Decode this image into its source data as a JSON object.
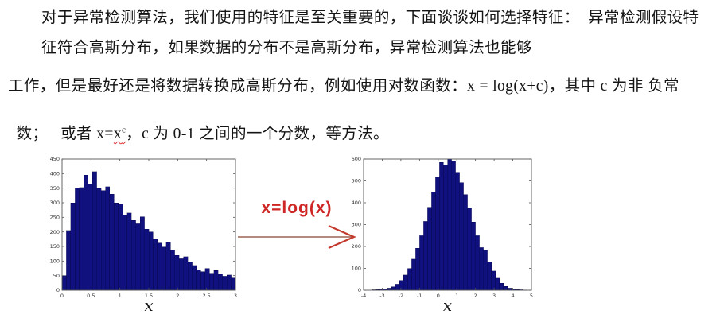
{
  "paragraph": {
    "line1": "对于异常检测算法，我们使用的特征是至关重要的，下面谈谈如何选择特征：  异常检测假设特",
    "line2": "征符合高斯分布，如果数据的分布不是高斯分布，异常检测算法也能够",
    "line3": "工作，但是最好还是将数据转换成高斯分布，例如使用对数函数：x = log(x+c)，其中 c 为非 负常",
    "line4_prefix": "数；   或者 x=",
    "line4_base": "x",
    "line4_sup": "c",
    "line4_suffix": "，c 为 0-1 之间的一个分数，等方法。"
  },
  "arrow": {
    "label": "x=log(x)",
    "label_color": "#cf2626",
    "line_color": "#9b6354",
    "head_color": "#c43a2e"
  },
  "chart_data": [
    {
      "type": "bar",
      "title": "",
      "xlabel": "x",
      "ylabel": "",
      "x_start": 0,
      "bin_width": 0.075,
      "xlim": [
        0,
        3
      ],
      "ylim": [
        0,
        450
      ],
      "xticks": [
        0,
        0.5,
        1,
        1.5,
        2,
        2.5,
        3
      ],
      "xtick_labels": [
        "0",
        "0.5",
        "1",
        "1.5",
        "2",
        "2.5",
        "3"
      ],
      "yticks": [
        0,
        50,
        100,
        150,
        200,
        250,
        300,
        350,
        400,
        450
      ],
      "ytick_labels": [
        "0",
        "50",
        "100",
        "150",
        "200",
        "250",
        "300",
        "350",
        "400",
        "450"
      ],
      "values": [
        50,
        205,
        300,
        350,
        352,
        395,
        363,
        407,
        350,
        342,
        355,
        330,
        300,
        295,
        258,
        265,
        240,
        228,
        252,
        210,
        200,
        175,
        162,
        148,
        165,
        138,
        120,
        108,
        115,
        98,
        85,
        70,
        64,
        75,
        58,
        68,
        55,
        48,
        52,
        42
      ],
      "bar_color": "#10107e",
      "bar_edge": "#05053c",
      "axis_color": "#555555",
      "tick_label_color": "#333333",
      "grid": false,
      "margins": {
        "l": 18,
        "r": 4,
        "t": 10,
        "b": 30
      }
    },
    {
      "type": "bar",
      "title": "",
      "xlabel": "x",
      "ylabel": "",
      "x_start": -4,
      "bin_width": 0.2142857,
      "xlim": [
        -4,
        5
      ],
      "ylim": [
        0,
        600
      ],
      "xticks": [
        -4,
        -3,
        -2,
        -1,
        0,
        1,
        2,
        3,
        4,
        5
      ],
      "xtick_labels": [
        "-4",
        "-3",
        "-2",
        "-1",
        "0",
        "1",
        "2",
        "3",
        "4",
        "5"
      ],
      "yticks": [
        0,
        100,
        200,
        300,
        400,
        500,
        600
      ],
      "ytick_labels": [
        "0",
        "100",
        "200",
        "300",
        "400",
        "500",
        "600"
      ],
      "values": [
        0,
        0,
        2,
        3,
        4,
        6,
        10,
        16,
        28,
        45,
        70,
        100,
        142,
        192,
        250,
        315,
        380,
        450,
        520,
        585,
        572,
        600,
        590,
        540,
        492,
        438,
        378,
        312,
        250,
        195,
        185,
        130,
        88,
        55,
        32,
        18,
        10,
        5,
        3,
        2,
        1,
        0
      ],
      "bar_color": "#10107e",
      "bar_edge": "#05053c",
      "axis_color": "#555555",
      "tick_label_color": "#333333",
      "grid": false,
      "margins": {
        "l": 21,
        "r": 38,
        "t": 12,
        "b": 30
      }
    }
  ]
}
